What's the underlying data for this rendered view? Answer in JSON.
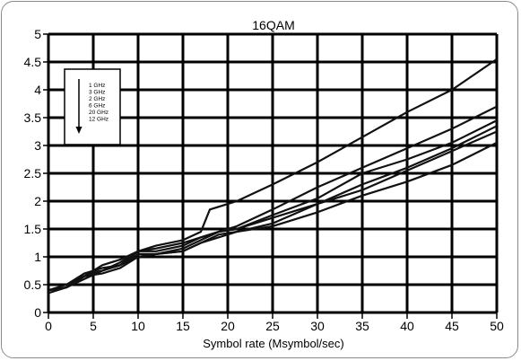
{
  "chart_data": {
    "type": "line",
    "title": "16QAM",
    "xlabel": "Symbol rate (Msymbol/sec)",
    "ylabel": "",
    "xlim": [
      0,
      50
    ],
    "ylim": [
      0,
      5
    ],
    "xticks": [
      0,
      5,
      10,
      15,
      20,
      25,
      30,
      35,
      40,
      45,
      50
    ],
    "yticks": [
      0,
      0.5,
      1,
      1.5,
      2,
      2.5,
      3,
      3.5,
      4,
      4.5,
      5
    ],
    "xtick_labels": [
      "0",
      "5",
      "10",
      "15",
      "20",
      "25",
      "30",
      "35",
      "40",
      "45",
      "50"
    ],
    "ytick_labels": [
      "0",
      "0.5",
      "1",
      "1.5",
      "2",
      "2.5",
      "3",
      "3.5",
      "4",
      "4.5",
      "5"
    ],
    "grid": true,
    "legend_position": "top-left",
    "legend_arrow": "down",
    "line_color": "#111111",
    "series": [
      {
        "name": "1 GHz",
        "x": [
          0,
          2,
          4,
          6,
          8,
          10,
          12,
          15,
          17,
          19,
          21,
          25,
          30,
          35,
          40,
          45,
          50
        ],
        "y": [
          0.4,
          0.45,
          0.6,
          0.75,
          0.85,
          1.05,
          1.05,
          1.1,
          1.25,
          1.35,
          1.45,
          1.55,
          1.8,
          2.1,
          2.35,
          2.65,
          3.05
        ]
      },
      {
        "name": "3 GHz",
        "x": [
          0,
          2,
          4,
          6,
          8,
          10,
          12,
          15,
          17,
          19,
          21,
          25,
          30,
          35,
          40,
          45,
          50
        ],
        "y": [
          0.4,
          0.45,
          0.65,
          0.75,
          0.85,
          1.0,
          1.05,
          1.1,
          1.25,
          1.4,
          1.45,
          1.6,
          1.95,
          2.2,
          2.55,
          2.9,
          3.25
        ]
      },
      {
        "name": "2 GHz",
        "x": [
          0,
          2,
          4,
          6,
          8,
          10,
          12,
          15,
          17,
          19,
          21,
          25,
          30,
          35,
          40,
          45,
          50
        ],
        "y": [
          0.4,
          0.45,
          0.65,
          0.7,
          0.8,
          1.0,
          1.05,
          1.15,
          1.3,
          1.45,
          1.5,
          1.7,
          1.95,
          2.3,
          2.6,
          2.95,
          3.35
        ]
      },
      {
        "name": "6 GHz",
        "x": [
          0,
          2,
          4,
          6,
          8,
          10,
          12,
          15,
          17,
          19,
          21,
          25,
          30,
          35,
          40,
          45,
          50
        ],
        "y": [
          0.4,
          0.5,
          0.7,
          0.8,
          0.85,
          1.1,
          1.1,
          1.2,
          1.35,
          1.45,
          1.5,
          1.75,
          2.05,
          2.5,
          2.75,
          3.05,
          3.45
        ]
      },
      {
        "name": "20 GHz",
        "x": [
          0,
          2,
          4,
          6,
          8,
          10,
          12,
          15,
          17,
          19,
          21,
          25,
          30,
          35,
          40,
          45,
          50
        ],
        "y": [
          0.4,
          0.45,
          0.7,
          0.75,
          0.9,
          1.1,
          1.15,
          1.25,
          1.35,
          1.45,
          1.55,
          1.85,
          2.25,
          2.6,
          2.95,
          3.3,
          3.7
        ]
      },
      {
        "name": "12 GHz",
        "x": [
          0,
          2,
          4,
          6,
          8,
          10,
          12,
          15,
          17,
          18,
          21,
          25,
          30,
          35,
          40,
          45,
          50
        ],
        "y": [
          0.35,
          0.45,
          0.65,
          0.85,
          0.95,
          1.1,
          1.2,
          1.3,
          1.45,
          1.85,
          2.0,
          2.3,
          2.7,
          3.15,
          3.6,
          4.0,
          4.55
        ]
      }
    ]
  }
}
